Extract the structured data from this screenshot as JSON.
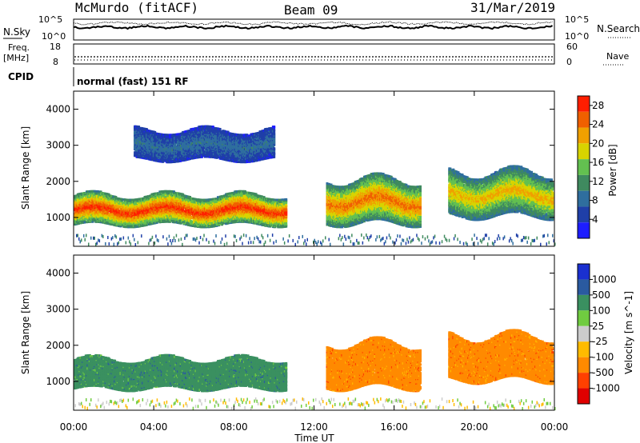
{
  "header": {
    "radar": "McMurdo (fitACF)",
    "beam": "Beam 09",
    "date": "31/Mar/2019"
  },
  "noise_panel": {
    "left_label": "N.Sky",
    "right_label": "N.Search",
    "ticks_left": [
      "10^5",
      "10^0"
    ],
    "ticks_right": [
      "10^5",
      "10^0"
    ]
  },
  "freq_panel": {
    "left_label_1": "Freq.",
    "left_label_2": "[MHz]",
    "right_label": "Nave",
    "ticks_left": [
      "18",
      "8"
    ],
    "ticks_right": [
      "60",
      "0"
    ]
  },
  "cpid": {
    "label": "CPID",
    "value": "normal (fast) 151 RF"
  },
  "colors": {
    "power_scale": [
      "#1d1dff",
      "#1f3fa8",
      "#2f6e9e",
      "#3f8a5f",
      "#63c050",
      "#d8d400",
      "#f0a000",
      "#f06000",
      "#ff1e00"
    ],
    "velocity_scale": [
      "#e00000",
      "#ff4000",
      "#ff8a00",
      "#ffbb00",
      "#cccccc",
      "#70cc40",
      "#3a9060",
      "#2a5aa0",
      "#1a30d0"
    ]
  },
  "chart_data": [
    {
      "type": "heatmap",
      "title": "Power",
      "ylabel": "Slant Range [km]",
      "xlabel": "",
      "x_ticks": [
        "00:00",
        "04:00",
        "08:00",
        "12:00",
        "16:00",
        "20:00",
        "00:00"
      ],
      "y_ticks": [
        "1000",
        "2000",
        "3000",
        "4000"
      ],
      "ylim": [
        200,
        4500
      ],
      "colorbar": {
        "label": "Power [dB]",
        "ticks": [
          "4",
          "8",
          "12",
          "16",
          "20",
          "24",
          "28"
        ],
        "range": [
          0,
          30
        ]
      },
      "echo_regions": [
        {
          "t_start": 0.0,
          "t_end": 10.6,
          "r_low": 700,
          "r_high": 1700,
          "peak_db": 30
        },
        {
          "t_start": 12.6,
          "t_end": 17.3,
          "r_low": 700,
          "r_high": 2200,
          "peak_db": 26
        },
        {
          "t_start": 18.7,
          "t_end": 23.9,
          "r_low": 900,
          "r_high": 2400,
          "peak_db": 22
        },
        {
          "t_start": 3.0,
          "t_end": 10.0,
          "r_low": 2500,
          "r_high": 3500,
          "peak_db": 8
        }
      ]
    },
    {
      "type": "heatmap",
      "title": "Velocity",
      "ylabel": "Slant Range [km]",
      "xlabel": "Time UT",
      "x_ticks": [
        "00:00",
        "04:00",
        "08:00",
        "12:00",
        "16:00",
        "20:00",
        "00:00"
      ],
      "y_ticks": [
        "1000",
        "2000",
        "3000",
        "4000"
      ],
      "ylim": [
        200,
        4500
      ],
      "colorbar": {
        "label": "Velocity [m s^-1]",
        "ticks": [
          "1000",
          "500",
          "100",
          "25",
          "-25",
          "-100",
          "-500",
          "-1000"
        ],
        "range": [
          -1000,
          1000
        ]
      },
      "echo_regions": [
        {
          "t_start": 0.0,
          "t_end": 10.6,
          "r_low": 700,
          "r_high": 1700,
          "velocity": 100
        },
        {
          "t_start": 12.6,
          "t_end": 17.3,
          "r_low": 700,
          "r_high": 2200,
          "velocity": -200
        },
        {
          "t_start": 18.7,
          "t_end": 23.9,
          "r_low": 900,
          "r_high": 2400,
          "velocity": -150
        }
      ]
    }
  ]
}
